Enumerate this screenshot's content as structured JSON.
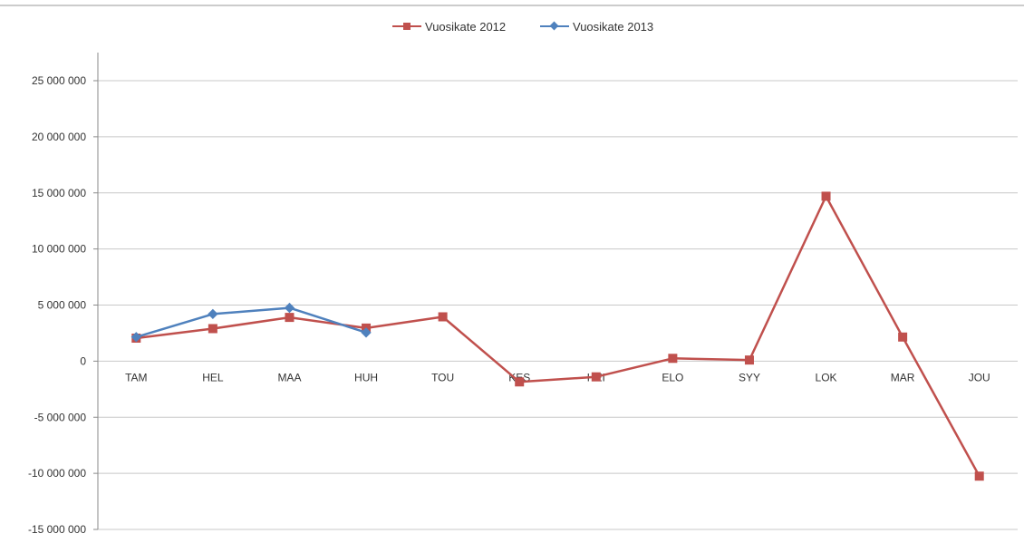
{
  "chart_data": {
    "type": "line",
    "categories": [
      "TAM",
      "HEL",
      "MAA",
      "HUH",
      "TOU",
      "KES",
      "HEI",
      "ELO",
      "SYY",
      "LOK",
      "MAR",
      "JOU"
    ],
    "series": [
      {
        "name": "Vuosikate 2012",
        "color": "#C0504D",
        "marker": "square",
        "values": [
          2050000,
          2900000,
          3900000,
          2950000,
          3950000,
          -1850000,
          -1400000,
          250000,
          100000,
          14700000,
          2150000,
          -10250000
        ]
      },
      {
        "name": "Vuosikate 2013",
        "color": "#4F81BD",
        "marker": "diamond",
        "values": [
          2150000,
          4200000,
          4750000,
          2550000,
          null,
          null,
          null,
          null,
          null,
          null,
          null,
          null
        ]
      }
    ],
    "yticks": [
      "25 000 000",
      "20 000 000",
      "15 000 000",
      "10 000 000",
      "5 000 000",
      "0",
      "-5 000 000",
      "-10 000 000",
      "-15 000 000"
    ],
    "ylim": [
      -15000000,
      25000000
    ],
    "grid": true,
    "legend": "top",
    "title": "",
    "xlabel": "",
    "ylabel": ""
  }
}
